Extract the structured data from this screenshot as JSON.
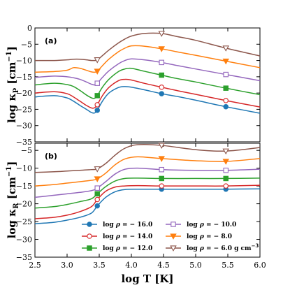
{
  "chart_data": {
    "type": "line",
    "xlabel": "log T [K]",
    "xlim": [
      2.5,
      6.0
    ],
    "xticks": [
      "2.5",
      "3.0",
      "3.5",
      "4.0",
      "4.5",
      "5.0",
      "5.5",
      "6.0"
    ],
    "series_meta": [
      {
        "name": "log ρ = − 16.0",
        "color": "#1f77b4",
        "marker": "circle-filled"
      },
      {
        "name": "log ρ = − 14.0",
        "color": "#d62728",
        "marker": "circle-open"
      },
      {
        "name": "log ρ = − 12.0",
        "color": "#2ca02c",
        "marker": "square-filled"
      },
      {
        "name": "log ρ = − 10.0",
        "color": "#9467bd",
        "marker": "square-open"
      },
      {
        "name": "log ρ = − 8.0",
        "color": "#ff7f0e",
        "marker": "triangle-down-filled"
      },
      {
        "name": "log ρ = − 6.0 g cm⁻³",
        "color": "#8c564b",
        "marker": "triangle-down-open"
      }
    ],
    "legend_placement": "lower-right of panel (b), 2 columns",
    "panels": [
      {
        "label": "(a)",
        "ylabel_main": "log κ",
        "ylabel_sub": "P",
        "ylabel_unit": " [cm",
        "ylabel_exp": "−1",
        "ylabel_close": "]",
        "ylim": [
          -35,
          0
        ],
        "yticks": [
          "0",
          "−5",
          "−10",
          "−15",
          "−20",
          "−25",
          "−30",
          "−35"
        ],
        "marker_x": [
          3.47,
          4.47,
          5.47
        ],
        "series": [
          {
            "x": [
              2.5,
              2.8,
              3.0,
              3.1,
              3.2,
              3.3,
              3.38,
              3.43,
              3.47,
              3.55,
              3.65,
              3.8,
              3.9,
              4.0,
              4.2,
              4.47,
              4.7,
              5.0,
              5.47,
              6.0
            ],
            "y": [
              -21.2,
              -20.8,
              -21.5,
              -22.5,
              -23.8,
              -25.0,
              -26.0,
              -26.1,
              -25.3,
              -22.5,
              -20.0,
              -18.3,
              -18.0,
              -18.2,
              -19.0,
              -20.2,
              -21.0,
              -22.2,
              -24.2,
              -26.2
            ]
          },
          {
            "x": [
              2.5,
              2.8,
              3.0,
              3.1,
              3.2,
              3.3,
              3.38,
              3.43,
              3.47,
              3.55,
              3.65,
              3.8,
              3.9,
              4.0,
              4.2,
              4.47,
              4.7,
              5.0,
              5.47,
              6.0
            ],
            "y": [
              -20.0,
              -19.6,
              -20.2,
              -21.2,
              -22.5,
              -23.8,
              -24.6,
              -24.5,
              -23.6,
              -20.8,
              -18.3,
              -16.2,
              -15.8,
              -16.0,
              -17.0,
              -18.2,
              -19.2,
              -20.4,
              -22.3,
              -24.3
            ]
          },
          {
            "x": [
              2.5,
              2.8,
              3.0,
              3.1,
              3.2,
              3.3,
              3.38,
              3.43,
              3.47,
              3.55,
              3.65,
              3.8,
              3.9,
              4.0,
              4.2,
              4.47,
              4.7,
              5.0,
              5.47,
              6.0
            ],
            "y": [
              -17.5,
              -17.0,
              -17.4,
              -18.0,
              -19.2,
              -20.6,
              -21.5,
              -21.6,
              -20.8,
              -18.2,
              -15.8,
              -13.4,
              -12.6,
              -12.4,
              -13.3,
              -14.5,
              -15.5,
              -16.6,
              -18.5,
              -20.5
            ]
          },
          {
            "x": [
              2.5,
              2.8,
              3.0,
              3.1,
              3.2,
              3.3,
              3.38,
              3.43,
              3.47,
              3.55,
              3.65,
              3.8,
              3.9,
              4.0,
              4.2,
              4.47,
              4.7,
              5.0,
              5.47,
              6.0
            ],
            "y": [
              -15.2,
              -14.8,
              -15.0,
              -15.3,
              -15.8,
              -16.6,
              -17.3,
              -17.5,
              -17.0,
              -15.2,
              -13.2,
              -11.0,
              -10.0,
              -9.5,
              -9.8,
              -10.6,
              -11.5,
              -12.6,
              -14.3,
              -16.2
            ]
          },
          {
            "x": [
              2.5,
              2.8,
              3.0,
              3.1,
              3.2,
              3.3,
              3.38,
              3.43,
              3.47,
              3.55,
              3.65,
              3.8,
              3.9,
              4.0,
              4.2,
              4.47,
              4.7,
              5.0,
              5.47,
              6.0
            ],
            "y": [
              -13.6,
              -13.4,
              -13.0,
              -12.2,
              -12.4,
              -13.0,
              -13.5,
              -13.6,
              -13.3,
              -11.6,
              -9.6,
              -7.3,
              -6.2,
              -5.5,
              -5.6,
              -6.4,
              -7.3,
              -8.4,
              -10.2,
              -12.2
            ]
          },
          {
            "x": [
              2.5,
              2.8,
              3.0,
              3.1,
              3.2,
              3.3,
              3.38,
              3.43,
              3.47,
              3.55,
              3.65,
              3.8,
              3.9,
              4.0,
              4.2,
              4.47,
              4.7,
              5.0,
              5.47,
              6.0
            ],
            "y": [
              -10.0,
              -10.0,
              -9.8,
              -9.6,
              -9.6,
              -9.8,
              -10.0,
              -10.0,
              -9.8,
              -8.5,
              -6.8,
              -4.6,
              -3.4,
              -2.5,
              -1.7,
              -1.7,
              -2.6,
              -3.8,
              -6.2,
              -8.6
            ]
          }
        ]
      },
      {
        "label": "(b)",
        "ylabel_main": "log κ",
        "ylabel_sub": "R",
        "ylabel_unit": " [cm",
        "ylabel_exp": "−1",
        "ylabel_close": "]",
        "ylim": [
          -35,
          -3
        ],
        "yticks": [
          "−5",
          "−10",
          "−15",
          "−20",
          "−25",
          "−30",
          "−35"
        ],
        "marker_x": [
          3.47,
          4.47,
          5.47
        ],
        "series": [
          {
            "x": [
              2.5,
              2.8,
              3.0,
              3.2,
              3.38,
              3.47,
              3.6,
              3.75,
              3.9,
              4.1,
              4.47,
              5.0,
              5.47,
              6.0
            ],
            "y": [
              -25.6,
              -25.2,
              -24.6,
              -23.8,
              -22.6,
              -20.6,
              -18.2,
              -16.6,
              -16.0,
              -15.9,
              -15.9,
              -15.9,
              -15.9,
              -15.8
            ]
          },
          {
            "x": [
              2.5,
              2.8,
              3.0,
              3.2,
              3.38,
              3.47,
              3.6,
              3.75,
              3.9,
              4.1,
              4.47,
              5.0,
              5.47,
              6.0
            ],
            "y": [
              -24.2,
              -23.8,
              -23.2,
              -22.2,
              -20.8,
              -18.8,
              -16.5,
              -15.3,
              -15.0,
              -14.9,
              -15.0,
              -15.0,
              -15.0,
              -14.8
            ]
          },
          {
            "x": [
              2.5,
              2.8,
              3.0,
              3.2,
              3.38,
              3.47,
              3.6,
              3.75,
              3.9,
              4.1,
              4.47,
              5.0,
              5.47,
              6.0
            ],
            "y": [
              -21.2,
              -20.8,
              -20.2,
              -19.4,
              -18.6,
              -17.2,
              -15.2,
              -13.6,
              -12.9,
              -12.8,
              -12.9,
              -12.9,
              -12.9,
              -12.8
            ]
          },
          {
            "x": [
              2.5,
              2.8,
              3.0,
              3.2,
              3.38,
              3.47,
              3.6,
              3.75,
              3.9,
              4.1,
              4.47,
              5.0,
              5.47,
              6.0
            ],
            "y": [
              -18.2,
              -17.6,
              -17.2,
              -16.8,
              -16.3,
              -15.6,
              -13.8,
              -11.6,
              -10.3,
              -10.0,
              -10.4,
              -10.6,
              -10.6,
              -10.3
            ]
          },
          {
            "x": [
              2.5,
              2.8,
              3.0,
              3.2,
              3.38,
              3.47,
              3.6,
              3.75,
              3.9,
              4.1,
              4.47,
              5.0,
              5.47,
              6.0
            ],
            "y": [
              -15.0,
              -14.6,
              -14.2,
              -13.8,
              -13.4,
              -13.0,
              -11.4,
              -9.0,
              -7.4,
              -6.8,
              -7.3,
              -7.9,
              -8.1,
              -7.3
            ]
          },
          {
            "x": [
              2.5,
              2.8,
              3.0,
              3.2,
              3.38,
              3.47,
              3.6,
              3.75,
              3.9,
              4.1,
              4.47,
              5.0,
              5.47,
              6.0
            ],
            "y": [
              -11.2,
              -11.0,
              -10.8,
              -10.6,
              -10.4,
              -10.2,
              -8.7,
              -6.3,
              -4.4,
              -3.4,
              -3.6,
              -4.8,
              -5.2,
              -4.2
            ]
          }
        ]
      }
    ],
    "legend": [
      {
        "prefix": "log ",
        "rho": "ρ",
        "suffix": " = − 16.0"
      },
      {
        "prefix": "log ",
        "rho": "ρ",
        "suffix": " = − 10.0"
      },
      {
        "prefix": "log ",
        "rho": "ρ",
        "suffix": " = − 14.0"
      },
      {
        "prefix": "log ",
        "rho": "ρ",
        "suffix": " = − 8.0"
      },
      {
        "prefix": "log ",
        "rho": "ρ",
        "suffix": " = − 12.0"
      },
      {
        "prefix": "log ",
        "rho": "ρ",
        "suffix": " = − 6.0 g cm",
        "exp": "−3"
      }
    ],
    "legend_series_index": [
      0,
      3,
      1,
      4,
      2,
      5
    ]
  }
}
